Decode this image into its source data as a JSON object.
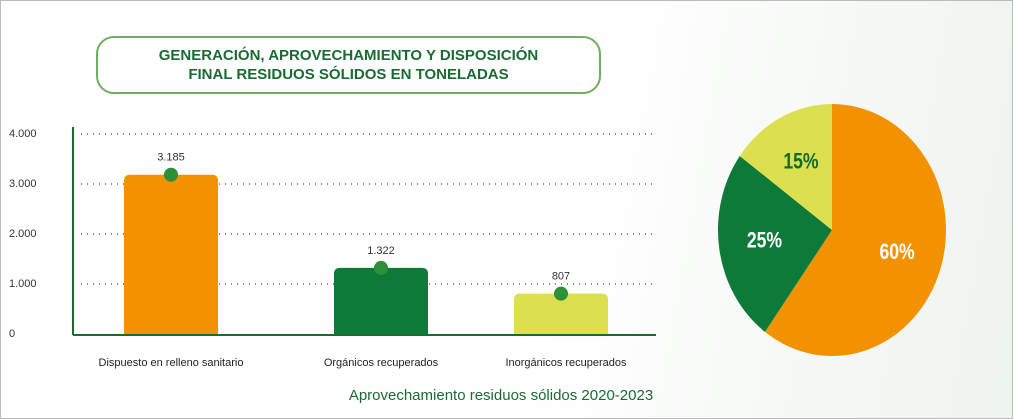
{
  "chart_data": [
    {
      "type": "bar",
      "title": "GENERACIÓN, APROVECHAMIENTO Y DISPOSICIÓN\nFINAL RESIDUOS SÓLIDOS EN TONELADAS",
      "x_label": "Aprovechamiento residuos sólidos 2020-2023",
      "categories": [
        "Dispuesto en relleno sanitario",
        "Orgánicos recuperados",
        "Inorgánicos recuperados"
      ],
      "values": [
        3185,
        1322,
        807
      ],
      "value_labels": [
        "3.185",
        "1.322",
        "807"
      ],
      "colors": [
        "#f39200",
        "#0e7a3a",
        "#dce04e"
      ],
      "marker_color": "#2e8f3a",
      "ylim": [
        0,
        4000
      ],
      "yticks": [
        0,
        {
          "value": 1000,
          "label": "1.000"
        },
        {
          "value": 2000,
          "label": "2.000"
        },
        {
          "value": 3000,
          "label": "3.000"
        },
        {
          "value": 4000,
          "label": "4.000"
        }
      ],
      "grid": true
    },
    {
      "type": "pie",
      "values": [
        60,
        25,
        15
      ],
      "value_labels": [
        "60%",
        "25%",
        "15%"
      ],
      "colors": [
        "#f39200",
        "#0e7a3a",
        "#dce04e"
      ],
      "label_colors": [
        "#ffffff",
        "#ffffff",
        "#0e6b30"
      ]
    }
  ]
}
